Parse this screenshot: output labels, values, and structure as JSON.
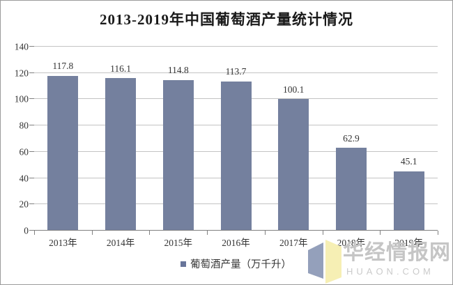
{
  "title": "2013-2019年中国葡萄酒产量统计情况",
  "chart_data": {
    "type": "bar",
    "title": "2013-2019年中国葡萄酒产量统计情况",
    "categories": [
      "2013年",
      "2014年",
      "2015年",
      "2016年",
      "2017年",
      "2018年",
      "2019年"
    ],
    "values": [
      117.8,
      116.1,
      114.8,
      113.7,
      100.1,
      62.9,
      45.1
    ],
    "value_labels": [
      "117.8",
      "116.1",
      "114.8",
      "113.7",
      "100.1",
      "62.9",
      "45.1"
    ],
    "series_name": "葡萄酒产量（万千升）",
    "xlabel": "",
    "ylabel": "",
    "ylim": [
      0,
      140
    ],
    "yticks": [
      0,
      20,
      40,
      60,
      80,
      100,
      120,
      140
    ],
    "grid": "horizontal",
    "legend_position": "bottom",
    "bar_color": "#74809e",
    "gridline_color": "#c3c3c3",
    "axis_color": "#808080"
  },
  "legend": {
    "label": "葡萄酒产量（万千升）"
  },
  "watermark": {
    "cn": "华经情报网",
    "en": "HUAON.COM",
    "logo_left_color": "#94a0bb",
    "logo_right_color": "#f6efb4"
  }
}
